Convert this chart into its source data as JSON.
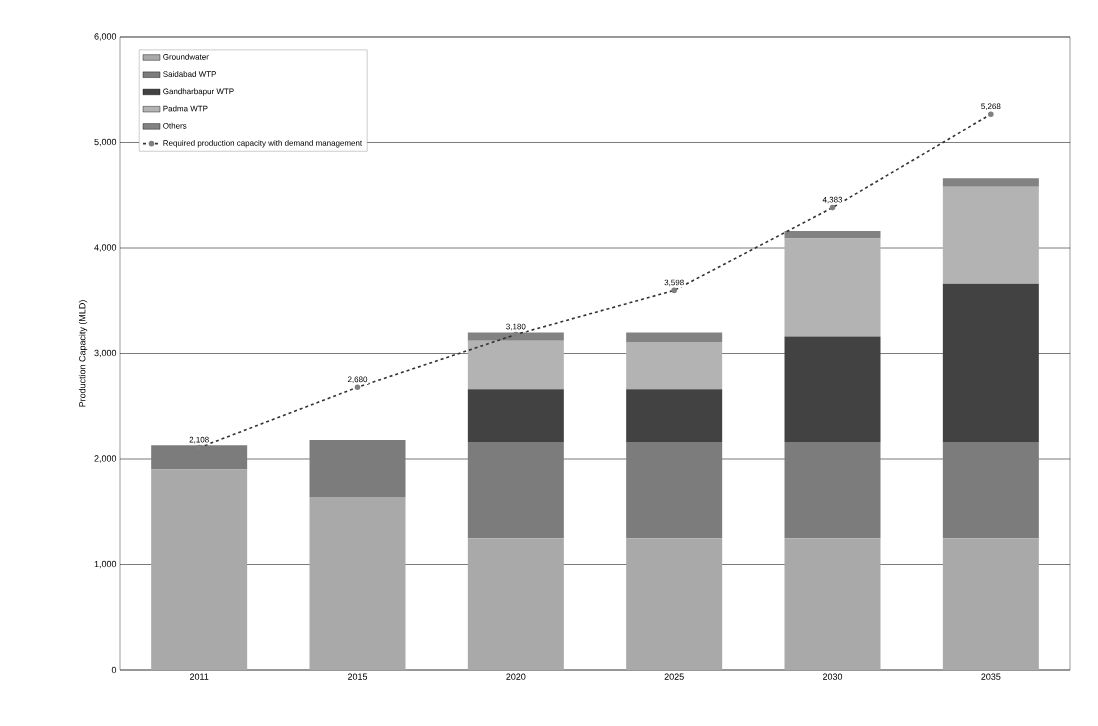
{
  "chart_data": {
    "type": "bar",
    "stacked": true,
    "ylabel": "Production Capacity (MLD)",
    "categories": [
      "2011",
      "2015",
      "2020",
      "2025",
      "2030",
      "2035"
    ],
    "series": [
      {
        "name": "Groundwater",
        "color": "#a9a9a9",
        "values": [
          1900,
          1640,
          1250,
          1250,
          1250,
          1250
        ]
      },
      {
        "name": "Saidabad WTP",
        "color": "#7c7c7c",
        "values": [
          230,
          540,
          910,
          910,
          910,
          910
        ]
      },
      {
        "name": "Gandharbapur WTP",
        "color": "#424242",
        "values": [
          0,
          0,
          500,
          500,
          1000,
          1500
        ]
      },
      {
        "name": "Padma WTP",
        "color": "#b3b3b3",
        "values": [
          0,
          0,
          460,
          450,
          930,
          920
        ]
      },
      {
        "name": "Others",
        "color": "#828282",
        "values": [
          0,
          0,
          80,
          90,
          70,
          80
        ]
      },
      {
        "name": "Required production capacity with demand management",
        "type": "line",
        "color": "#333333",
        "line_style": "dashed",
        "marker": "circle",
        "values": [
          2108,
          2680,
          3180,
          3598,
          4383,
          5268
        ],
        "value_labels": [
          "2,108",
          "2,680",
          "3,180",
          "3,598",
          "4,383",
          "5,268"
        ]
      }
    ],
    "ylim": [
      0,
      6000
    ],
    "yticks": [
      {
        "value": 0,
        "label": "0"
      },
      {
        "value": 1000,
        "label": "1,000"
      },
      {
        "value": 2000,
        "label": "2,000"
      },
      {
        "value": 3000,
        "label": "3,000"
      },
      {
        "value": 4000,
        "label": "4,000"
      },
      {
        "value": 5000,
        "label": "5,000"
      },
      {
        "value": 6000,
        "label": "6,000"
      }
    ],
    "grid": "y",
    "legend": "top left"
  }
}
